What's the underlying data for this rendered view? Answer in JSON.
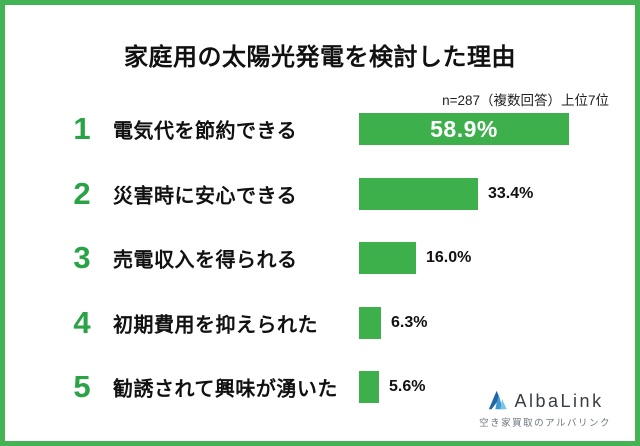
{
  "colors": {
    "bar_green": "#3db04c",
    "border_green": "#43b354",
    "rank_green": "#2aa347",
    "logo_blue_dark": "#1d66ab",
    "logo_blue_mid": "#3f97cf",
    "logo_blue_light": "#7cc5e6"
  },
  "chart_data": {
    "type": "bar",
    "orientation": "horizontal",
    "title": "家庭用の太陽光発電を検討した理由",
    "note": "n=287（複数回答）上位7位",
    "unit": "%",
    "xlim": [
      0,
      60
    ],
    "grid": false,
    "legend": false,
    "categories": [
      "電気代を節約できる",
      "災害時に安心できる",
      "売電収入を得られる",
      "初期費用を抑えられた",
      "勧誘されて興味が湧いた"
    ],
    "values": [
      58.9,
      33.4,
      16.0,
      6.3,
      5.6
    ],
    "rows": [
      {
        "rank": "1",
        "label": "電気代を節約できる",
        "value": 58.9,
        "value_label": "58.9%",
        "label_position": "inside"
      },
      {
        "rank": "2",
        "label": "災害時に安心できる",
        "value": 33.4,
        "value_label": "33.4%",
        "label_position": "outside"
      },
      {
        "rank": "3",
        "label": "売電収入を得られる",
        "value": 16.0,
        "value_label": "16.0%",
        "label_position": "outside"
      },
      {
        "rank": "4",
        "label": "初期費用を抑えられた",
        "value": 6.3,
        "value_label": "6.3%",
        "label_position": "outside"
      },
      {
        "rank": "5",
        "label": "勧誘されて興味が湧いた",
        "value": 5.6,
        "value_label": "5.6%",
        "label_position": "outside"
      }
    ]
  },
  "logo": {
    "name": "AlbaLink",
    "tagline": "空き家買取のアルバリンク"
  }
}
